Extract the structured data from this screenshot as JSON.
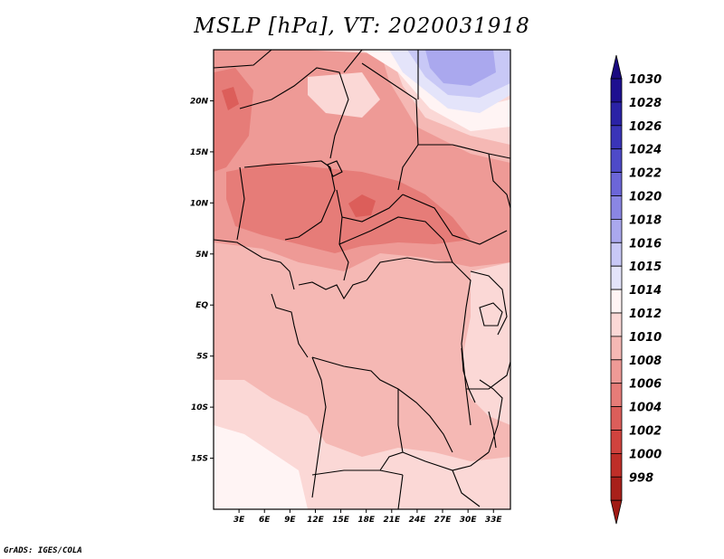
{
  "title": "MSLP [hPa], VT: 2020031918",
  "credit": "GrADS: IGES/COLA",
  "map": {
    "lon_range": [
      0,
      35
    ],
    "lat_range": [
      -20,
      25
    ],
    "lat_ticks": [
      {
        "lat": 20,
        "label": "20N"
      },
      {
        "lat": 15,
        "label": "15N"
      },
      {
        "lat": 10,
        "label": "10N"
      },
      {
        "lat": 5,
        "label": "5N"
      },
      {
        "lat": 0,
        "label": "EQ"
      },
      {
        "lat": -5,
        "label": "5S"
      },
      {
        "lat": -10,
        "label": "10S"
      },
      {
        "lat": -15,
        "label": "15S"
      }
    ],
    "lon_ticks": [
      {
        "lon": 3,
        "label": "3E"
      },
      {
        "lon": 6,
        "label": "6E"
      },
      {
        "lon": 9,
        "label": "9E"
      },
      {
        "lon": 12,
        "label": "12E"
      },
      {
        "lon": 15,
        "label": "15E"
      },
      {
        "lon": 18,
        "label": "18E"
      },
      {
        "lon": 21,
        "label": "21E"
      },
      {
        "lon": 24,
        "label": "24E"
      },
      {
        "lon": 27,
        "label": "27E"
      },
      {
        "lon": 30,
        "label": "30E"
      },
      {
        "lon": 33,
        "label": "33E"
      }
    ]
  },
  "colorbar": {
    "levels": [
      {
        "label": "1030",
        "color": "#1e1090"
      },
      {
        "label": "1028",
        "color": "#2a22a6"
      },
      {
        "label": "1026",
        "color": "#3a34b8"
      },
      {
        "label": "1024",
        "color": "#4e4ac8"
      },
      {
        "label": "1022",
        "color": "#6c66d8"
      },
      {
        "label": "1020",
        "color": "#8a86e4"
      },
      {
        "label": "1018",
        "color": "#aaa8ee"
      },
      {
        "label": "1016",
        "color": "#c8c8f6"
      },
      {
        "label": "1015",
        "color": "#e4e4fa"
      },
      {
        "label": "1014",
        "color": "#fff4f4"
      },
      {
        "label": "1012",
        "color": "#fbd8d6"
      },
      {
        "label": "1010",
        "color": "#f5b8b4"
      },
      {
        "label": "1008",
        "color": "#ee9a96"
      },
      {
        "label": "1006",
        "color": "#e67c78"
      },
      {
        "label": "1004",
        "color": "#dc5e5a"
      },
      {
        "label": "1002",
        "color": "#d0433e"
      },
      {
        "label": "1000",
        "color": "#bf2e28"
      },
      {
        "label": "998",
        "color": "#a8201a"
      }
    ],
    "top_arrow_color": "#1a0a80",
    "bottom_arrow_color": "#a01a14"
  }
}
